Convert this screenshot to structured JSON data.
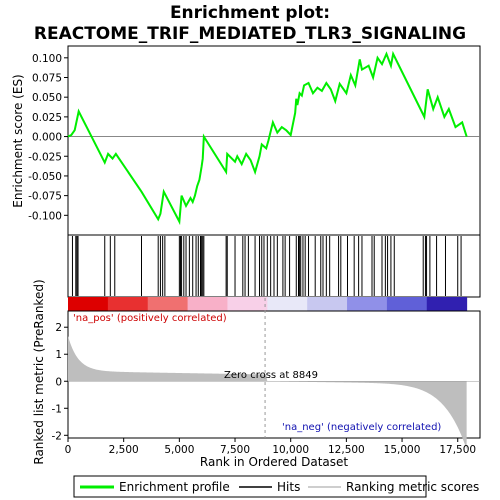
{
  "chart_data": {
    "type": "line",
    "title_line1": "Enrichment plot:",
    "title_line2": "REACTOME_TRIF_MEDIATED_TLR3_SIGNALING",
    "ylabel_top": "Enrichment score (ES)",
    "ylabel_bottom": "Ranked list metric (PreRanked)",
    "xlabel": "Rank in Ordered Dataset",
    "xlim": [
      0,
      18500
    ],
    "x_ticks": [
      "0",
      "2,500",
      "5,000",
      "7,500",
      "10,000",
      "12,500",
      "15,000",
      "17,500"
    ],
    "x_tick_values": [
      0,
      2500,
      5000,
      7500,
      10000,
      12500,
      15000,
      17500
    ],
    "es_ylim": [
      -0.125,
      0.115
    ],
    "es_ticks": [
      "-0.100",
      "-0.075",
      "-0.050",
      "-0.025",
      "0.000",
      "0.025",
      "0.050",
      "0.075",
      "0.100"
    ],
    "es_tick_values": [
      -0.1,
      -0.075,
      -0.05,
      -0.025,
      0.0,
      0.025,
      0.05,
      0.075,
      0.1
    ],
    "metric_ylim": [
      -2.1,
      2.6
    ],
    "metric_ticks": [
      "-2",
      "-1",
      "0",
      "1",
      "2"
    ],
    "metric_tick_values": [
      -2,
      -1,
      0,
      1,
      2
    ],
    "series": [
      {
        "name": "Enrichment profile",
        "color": "#00ee00",
        "x": [
          0,
          150,
          300,
          480,
          1650,
          1800,
          2000,
          2150,
          3300,
          4050,
          4150,
          4300,
          5000,
          5100,
          5300,
          5500,
          5600,
          5700,
          5800,
          5900,
          6000,
          6050,
          6100,
          7100,
          7150,
          7500,
          7600,
          7800,
          8000,
          8200,
          8400,
          8600,
          8700,
          8900,
          9000,
          9200,
          9400,
          9600,
          9800,
          10000,
          10200,
          10250,
          10300,
          10400,
          10500,
          10600,
          10800,
          11000,
          11200,
          11400,
          11600,
          11800,
          12000,
          12200,
          12500,
          12700,
          12900,
          13100,
          13200,
          13500,
          13700,
          13900,
          14100,
          14300,
          14500,
          14600,
          16000,
          16150,
          16400,
          16600,
          16900,
          17100,
          17400,
          17700,
          17900
        ],
        "y": [
          0.0,
          0.002,
          0.008,
          0.032,
          -0.033,
          -0.022,
          -0.028,
          -0.022,
          -0.07,
          -0.105,
          -0.098,
          -0.07,
          -0.108,
          -0.075,
          -0.088,
          -0.078,
          -0.083,
          -0.075,
          -0.063,
          -0.055,
          -0.038,
          -0.028,
          0.0,
          -0.045,
          -0.022,
          -0.032,
          -0.025,
          -0.035,
          -0.022,
          -0.03,
          -0.045,
          -0.025,
          -0.01,
          -0.015,
          -0.005,
          0.018,
          0.005,
          0.012,
          0.008,
          0.002,
          0.03,
          0.048,
          0.04,
          0.055,
          0.052,
          0.065,
          0.068,
          0.055,
          0.062,
          0.058,
          0.068,
          0.06,
          0.045,
          0.067,
          0.055,
          0.078,
          0.065,
          0.098,
          0.085,
          0.09,
          0.075,
          0.1,
          0.092,
          0.105,
          0.09,
          0.105,
          0.025,
          0.06,
          0.035,
          0.05,
          0.025,
          0.035,
          0.012,
          0.018,
          0.0
        ]
      }
    ],
    "hits": [
      200,
      350,
      400,
      450,
      1650,
      1900,
      2100,
      3300,
      4050,
      4150,
      4250,
      4350,
      5000,
      5050,
      5100,
      5200,
      5300,
      5450,
      5600,
      5750,
      5850,
      5950,
      6000,
      6050,
      6100,
      7100,
      7150,
      7500,
      7850,
      7950,
      8100,
      8400,
      8600,
      8700,
      8800,
      8950,
      9100,
      9250,
      9400,
      9650,
      9750,
      9950,
      10250,
      10350,
      10400,
      10450,
      10550,
      10650,
      10800,
      11100,
      11350,
      11450,
      11600,
      11750,
      12150,
      12250,
      12550,
      12850,
      13050,
      13200,
      13650,
      13750,
      14100,
      14250,
      14350,
      14500,
      14650,
      15950,
      16050,
      16100,
      16250,
      16550,
      16950,
      17500,
      17650
    ],
    "bar_color": "#000000",
    "metric_color": "#bebebe",
    "zero_cross": 8849,
    "annotations": {
      "pos_label": "'na_pos' (positively correlated)",
      "neg_label": "'na_neg' (negatively correlated)",
      "zero_label": "Zero cross at 8849"
    },
    "heatmap_colors": [
      "#dd0000",
      "#e83030",
      "#f07070",
      "#f8b0c8",
      "#f8d0e8",
      "#e8e8f8",
      "#c8c8f0",
      "#9090e8",
      "#6060d8",
      "#3020b0"
    ],
    "legend": [
      {
        "label": "Enrichment profile",
        "kind": "line",
        "color": "#00ee00"
      },
      {
        "label": "Hits",
        "kind": "line",
        "color": "#000000"
      },
      {
        "label": "Ranking metric scores",
        "kind": "line",
        "color": "#bebebe"
      }
    ]
  }
}
